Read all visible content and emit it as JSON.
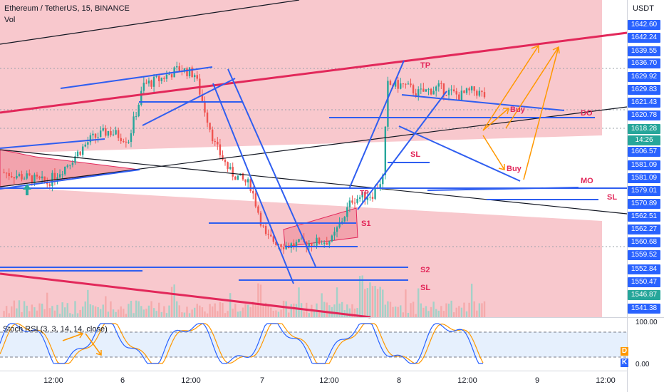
{
  "header": {
    "symbol_line": "Ethereum / TetherUS, 15, BINANCE",
    "volume_label": "Vol"
  },
  "rsi_panel": {
    "label": "Stoch RSI (3, 3, 14, 14, close)",
    "ticks": [
      "100.00",
      "0.00"
    ],
    "badges": [
      {
        "text": "D",
        "color": "#ff9800"
      },
      {
        "text": "K",
        "color": "#2962ff"
      }
    ]
  },
  "price_axis": {
    "currency": "USDT",
    "tags": [
      {
        "text": "1642.60",
        "style": "blue"
      },
      {
        "text": "1642.24",
        "style": "blue"
      },
      {
        "text": "1639.55",
        "style": "blue"
      },
      {
        "text": "1636.70",
        "style": "blue"
      },
      {
        "text": "1629.92",
        "style": "blue"
      },
      {
        "text": "1629.83",
        "style": "blue"
      },
      {
        "text": "1621.43",
        "style": "blue"
      },
      {
        "text": "1620.78",
        "style": "blue"
      },
      {
        "text": "1618.28",
        "style": "green"
      },
      {
        "text": "14:26",
        "style": "green"
      },
      {
        "text": "1606.57",
        "style": "blue"
      },
      {
        "text": "1581.09",
        "style": "blue"
      },
      {
        "text": "1581.09",
        "style": "blue"
      },
      {
        "text": "1579.01",
        "style": "blue"
      },
      {
        "text": "1570.89",
        "style": "blue"
      },
      {
        "text": "1562.51",
        "style": "blue"
      },
      {
        "text": "1562.27",
        "style": "blue"
      },
      {
        "text": "1560.68",
        "style": "blue"
      },
      {
        "text": "1559.52",
        "style": "blue"
      },
      {
        "text": "1552.84",
        "style": "blue"
      },
      {
        "text": "1550.47",
        "style": "blue"
      },
      {
        "text": "1546.87",
        "style": "green"
      },
      {
        "text": "1541.38",
        "style": "blue"
      }
    ]
  },
  "time_axis": [
    "12:00",
    "6",
    "12:00",
    "7",
    "12:00",
    "8",
    "12:00",
    "9",
    "12:00"
  ],
  "annotations": {
    "tp": "TP",
    "buy_upper": "Buy",
    "buy_lower": "Buy",
    "do": "DO",
    "sl_mid": "SL",
    "mo": "MO",
    "sl_right": "SL",
    "tp_small": "TP",
    "s1": "S1",
    "s2": "S2",
    "sl_bottom": "SL"
  },
  "colors": {
    "candle_up": "#26a69a",
    "candle_down": "#ef5350",
    "zone_fill": "#f8c8cd",
    "drawing_blue": "#2f5ef0",
    "drawing_red": "#e2285a",
    "arrow_orange": "#ff9800",
    "label_red": "#e2285a"
  },
  "chart_data": {
    "type": "candlestick",
    "symbol": "Ethereum / TetherUS",
    "timeframe": "15",
    "exchange": "BINANCE",
    "x_ticks": [
      "12:00",
      "6",
      "12:00",
      "7",
      "12:00",
      "8",
      "12:00",
      "9",
      "12:00"
    ],
    "y_unit": "USDT",
    "ylim": [
      1538,
      1648
    ],
    "approx_close_path": [
      [
        0,
        1590
      ],
      [
        10,
        1588
      ],
      [
        18,
        1586
      ],
      [
        25,
        1592
      ],
      [
        35,
        1602
      ],
      [
        42,
        1605
      ],
      [
        50,
        1602
      ],
      [
        56,
        1622
      ],
      [
        62,
        1624
      ],
      [
        70,
        1628
      ],
      [
        76,
        1626
      ],
      [
        84,
        1600
      ],
      [
        90,
        1590
      ],
      [
        98,
        1585
      ],
      [
        104,
        1566
      ],
      [
        112,
        1563
      ],
      [
        122,
        1564
      ],
      [
        130,
        1565
      ],
      [
        138,
        1580
      ],
      [
        146,
        1582
      ],
      [
        150,
        1588
      ],
      [
        152,
        1622
      ],
      [
        158,
        1622
      ],
      [
        164,
        1619
      ],
      [
        172,
        1621
      ],
      [
        180,
        1618
      ],
      [
        186,
        1620
      ],
      [
        190,
        1618
      ]
    ],
    "last_price": 1618.28,
    "stoch_rsi": {
      "ylim": [
        0,
        100
      ]
    }
  }
}
